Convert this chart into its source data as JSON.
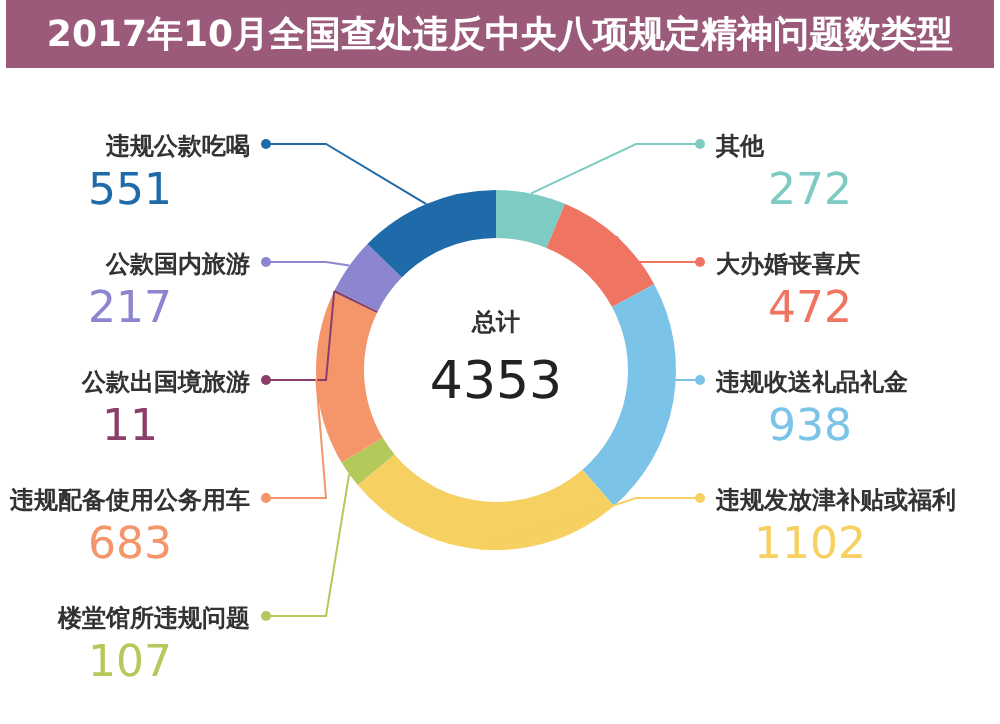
{
  "chart_data": {
    "type": "donut",
    "title": "2017年10月全国查处违反中央八项规定精神问题数类型",
    "categories": [
      "其他",
      "大办婚丧喜庆",
      "违规收送礼品礼金",
      "违规发放津补贴或福利",
      "楼堂馆所违规问题",
      "违规配备使用公务用车",
      "公款出国境旅游",
      "公款国内旅游",
      "违规公款吃喝"
    ],
    "values": [
      272,
      472,
      938,
      1102,
      107,
      683,
      11,
      217,
      551
    ],
    "colors": [
      "#7ecbc3",
      "#f07462",
      "#7cc3e8",
      "#f6d060",
      "#b3c95a",
      "#f4956a",
      "#8a3f6a",
      "#8b86cf",
      "#1f6aa8"
    ],
    "data_labels": true,
    "legend": "left",
    "annotations": [
      "总计",
      "4353"
    ]
  }
}
